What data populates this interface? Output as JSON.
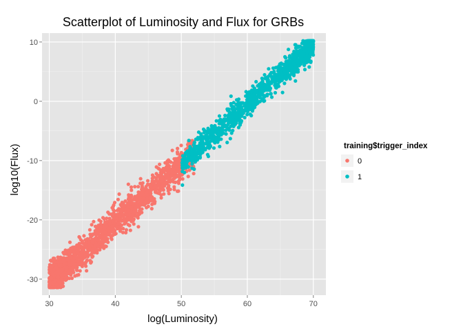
{
  "chart_data": {
    "type": "scatter",
    "title": "Scatterplot of Luminosity and Flux for GRBs",
    "xlabel": "log(Luminosity)",
    "ylabel": "log10(Flux)",
    "xlim": [
      28.9,
      71.9
    ],
    "ylim": [
      -32.7,
      11.5
    ],
    "xticks": [
      30,
      40,
      50,
      60,
      70
    ],
    "yticks": [
      -30,
      -20,
      -10,
      0,
      10
    ],
    "grid": true,
    "legend": {
      "title": "training$trigger_index",
      "position": "right",
      "entries": [
        "0",
        "1"
      ]
    },
    "series": [
      {
        "name": "0",
        "color": "#f8766d",
        "x_range": [
          30,
          52
        ],
        "relation": {
          "slope": 1.0,
          "intercept": -60.5
        },
        "spread": 1.3,
        "x_sample": [
          30.0,
          30.5,
          31.0,
          32.0,
          33.0,
          34.0,
          35.0,
          36.0,
          38.0,
          40.0,
          42.0,
          44.0,
          46.0,
          48.0,
          50.0,
          51.5
        ],
        "y_sample": [
          -30.5,
          -29.2,
          -29.0,
          -28.3,
          -27.6,
          -26.3,
          -25.1,
          -24.2,
          -22.4,
          -20.5,
          -18.4,
          -16.6,
          -14.4,
          -12.5,
          -10.5,
          -9.2
        ]
      },
      {
        "name": "1",
        "color": "#00bfc4",
        "x_range": [
          50,
          70
        ],
        "relation": {
          "slope": 1.0,
          "intercept": -60.5
        },
        "spread": 1.1,
        "x_sample": [
          50.5,
          52.0,
          54.0,
          56.0,
          58.0,
          60.0,
          62.0,
          64.0,
          66.0,
          68.0,
          69.5
        ],
        "y_sample": [
          -9.6,
          -8.3,
          -6.4,
          -4.6,
          -2.4,
          -0.6,
          1.6,
          3.5,
          5.6,
          7.6,
          9.5
        ]
      }
    ]
  }
}
